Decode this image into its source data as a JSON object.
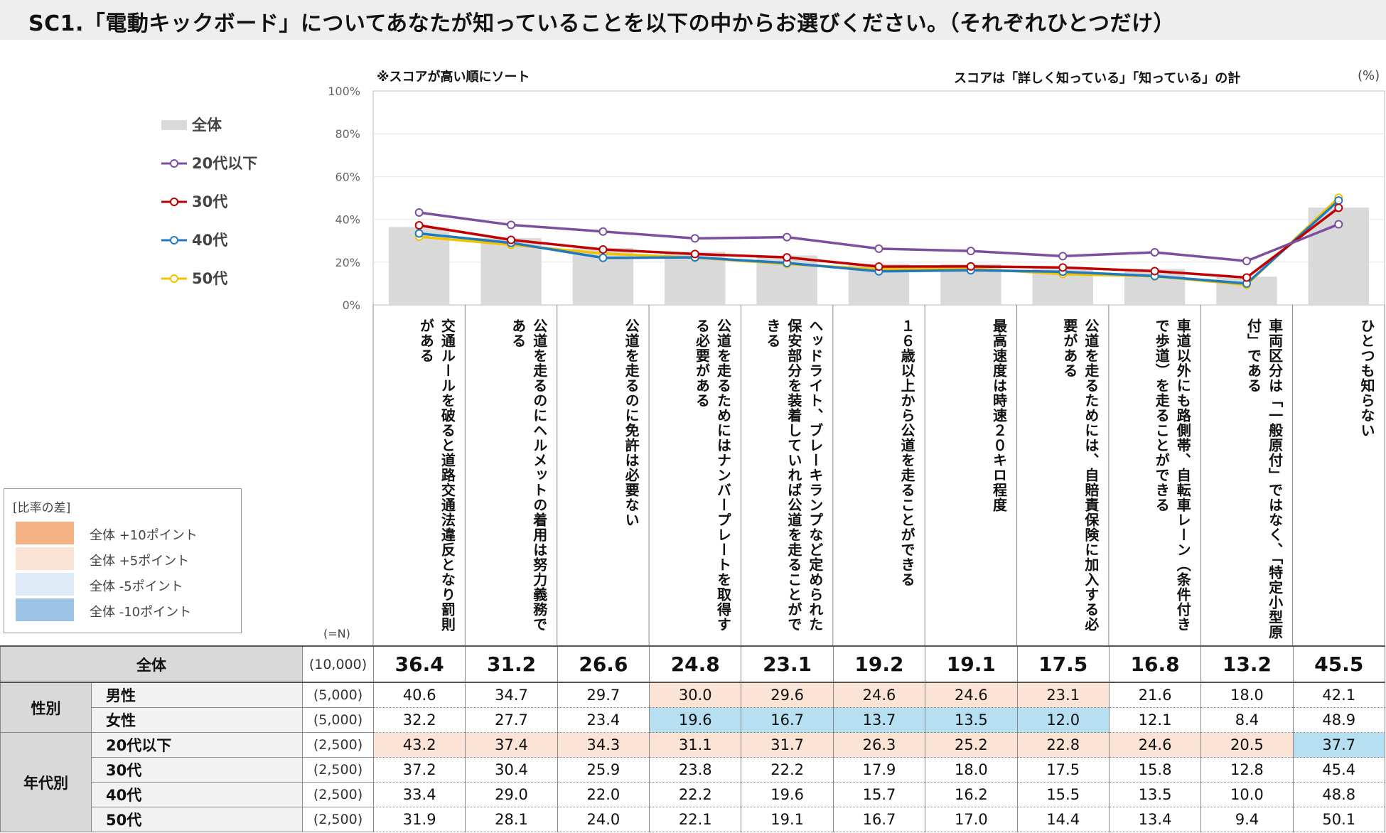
{
  "title": "SC1.「電動キックボード」についてあなたが知っていることを以下の中からお選びください。（それぞれひとつだけ）",
  "notes": {
    "sort": "※スコアが高い順にソート",
    "score": "スコアは「詳しく知っている」「知っている」の計",
    "unit": "(%)"
  },
  "legend": [
    {
      "label": "全体",
      "type": "bar",
      "color": "#d9d9d9"
    },
    {
      "label": "20代以下",
      "type": "line",
      "color": "#7b4f9d"
    },
    {
      "label": "30代",
      "type": "line",
      "color": "#c00000"
    },
    {
      "label": "40代",
      "type": "line",
      "color": "#1f7ac0"
    },
    {
      "label": "50代",
      "type": "line",
      "color": "#f2c200"
    }
  ],
  "diff_legend": {
    "title": "[比率の差]",
    "items": [
      {
        "label": "全体 +10ポイント",
        "color": "#f4b183"
      },
      {
        "label": "全体 +5ポイント",
        "color": "#fbe4d5"
      },
      {
        "label": "全体 -5ポイント",
        "color": "#deebf7"
      },
      {
        "label": "全体 -10ポイント",
        "color": "#9dc3e6"
      }
    ]
  },
  "chart_data": {
    "type": "bar",
    "title": "SC1.「電動キックボード」についてあなたが知っていることを以下の中からお選びください。（それぞれひとつだけ）",
    "ylabel": "(%)",
    "ylim": [
      0,
      100
    ],
    "yticks": [
      "0%",
      "20%",
      "40%",
      "60%",
      "80%",
      "100%"
    ],
    "categories": [
      "交通ルールを破ると道路交通法違反となり罰則がある",
      "公道を走るのにヘルメットの着用は努力義務である",
      "公道を走るのに免許は必要ない",
      "公道を走るためにはナンバープレートを取得する必要がある",
      "ヘッドライト、ブレーキランプなど定められた保安部分を装着していれば公道を走ることができる",
      "１６歳以上から公道を走ることができる",
      "最高速度は時速２０キロ程度",
      "公道を走るためには、自賠責保険に加入する必要がある",
      "車道以外にも路側帯、自転車レーン（条件付きで歩道）を走ることができる",
      "車両区分は「一般原付」ではなく、「特定小型原付」である",
      "ひとつも知らない"
    ],
    "series": [
      {
        "name": "全体",
        "type": "bar",
        "color": "#d9d9d9",
        "values": [
          36.4,
          31.2,
          26.6,
          24.8,
          23.1,
          19.2,
          19.1,
          17.5,
          16.8,
          13.2,
          45.5
        ]
      },
      {
        "name": "20代以下",
        "type": "line",
        "color": "#7b4f9d",
        "values": [
          43.2,
          37.4,
          34.3,
          31.1,
          31.7,
          26.3,
          25.2,
          22.8,
          24.6,
          20.5,
          37.7
        ]
      },
      {
        "name": "30代",
        "type": "line",
        "color": "#c00000",
        "values": [
          37.2,
          30.4,
          25.9,
          23.8,
          22.2,
          17.9,
          18.0,
          17.5,
          15.8,
          12.8,
          45.4
        ]
      },
      {
        "name": "40代",
        "type": "line",
        "color": "#1f7ac0",
        "values": [
          33.4,
          29.0,
          22.0,
          22.2,
          19.6,
          15.7,
          16.2,
          15.5,
          13.5,
          10.0,
          48.8
        ]
      },
      {
        "name": "50代",
        "type": "line",
        "color": "#f2c200",
        "values": [
          31.9,
          28.1,
          24.0,
          22.1,
          19.1,
          16.7,
          17.0,
          14.4,
          13.4,
          9.4,
          50.1
        ]
      }
    ]
  },
  "table": {
    "n_header": "(=N)",
    "total": {
      "label": "全体",
      "n": "(10,000)",
      "values": [
        "36.4",
        "31.2",
        "26.6",
        "24.8",
        "23.1",
        "19.2",
        "19.1",
        "17.5",
        "16.8",
        "13.2",
        "45.5"
      ]
    },
    "groups": [
      {
        "label": "性別",
        "rows": [
          {
            "label": "男性",
            "n": "(5,000)",
            "values": [
              "40.6",
              "34.7",
              "29.7",
              "30.0",
              "29.6",
              "24.6",
              "24.6",
              "23.1",
              "21.6",
              "18.0",
              "42.1"
            ],
            "hl": [
              "",
              "",
              "",
              "hi",
              "hi",
              "hi",
              "hi",
              "hi",
              "",
              "",
              ""
            ]
          },
          {
            "label": "女性",
            "n": "(5,000)",
            "values": [
              "32.2",
              "27.7",
              "23.4",
              "19.6",
              "16.7",
              "13.7",
              "13.5",
              "12.0",
              "12.1",
              "8.4",
              "48.9"
            ],
            "hl": [
              "",
              "",
              "",
              "lo",
              "lo",
              "lo",
              "lo",
              "lo",
              "",
              "",
              ""
            ]
          }
        ]
      },
      {
        "label": "年代別",
        "rows": [
          {
            "label": "20代以下",
            "n": "(2,500)",
            "values": [
              "43.2",
              "37.4",
              "34.3",
              "31.1",
              "31.7",
              "26.3",
              "25.2",
              "22.8",
              "24.6",
              "20.5",
              "37.7"
            ],
            "hl": [
              "hi",
              "hi",
              "hi",
              "hi",
              "hi",
              "hi",
              "hi",
              "hi",
              "hi",
              "hi",
              "lo"
            ]
          },
          {
            "label": "30代",
            "n": "(2,500)",
            "values": [
              "37.2",
              "30.4",
              "25.9",
              "23.8",
              "22.2",
              "17.9",
              "18.0",
              "17.5",
              "15.8",
              "12.8",
              "45.4"
            ],
            "hl": [
              "",
              "",
              "",
              "",
              "",
              "",
              "",
              "",
              "",
              "",
              ""
            ]
          },
          {
            "label": "40代",
            "n": "(2,500)",
            "values": [
              "33.4",
              "29.0",
              "22.0",
              "22.2",
              "19.6",
              "15.7",
              "16.2",
              "15.5",
              "13.5",
              "10.0",
              "48.8"
            ],
            "hl": [
              "",
              "",
              "",
              "",
              "",
              "",
              "",
              "",
              "",
              "",
              ""
            ]
          },
          {
            "label": "50代",
            "n": "(2,500)",
            "values": [
              "31.9",
              "28.1",
              "24.0",
              "22.1",
              "19.1",
              "16.7",
              "17.0",
              "14.4",
              "13.4",
              "9.4",
              "50.1"
            ],
            "hl": [
              "",
              "",
              "",
              "",
              "",
              "",
              "",
              "",
              "",
              "",
              ""
            ]
          }
        ]
      }
    ]
  }
}
